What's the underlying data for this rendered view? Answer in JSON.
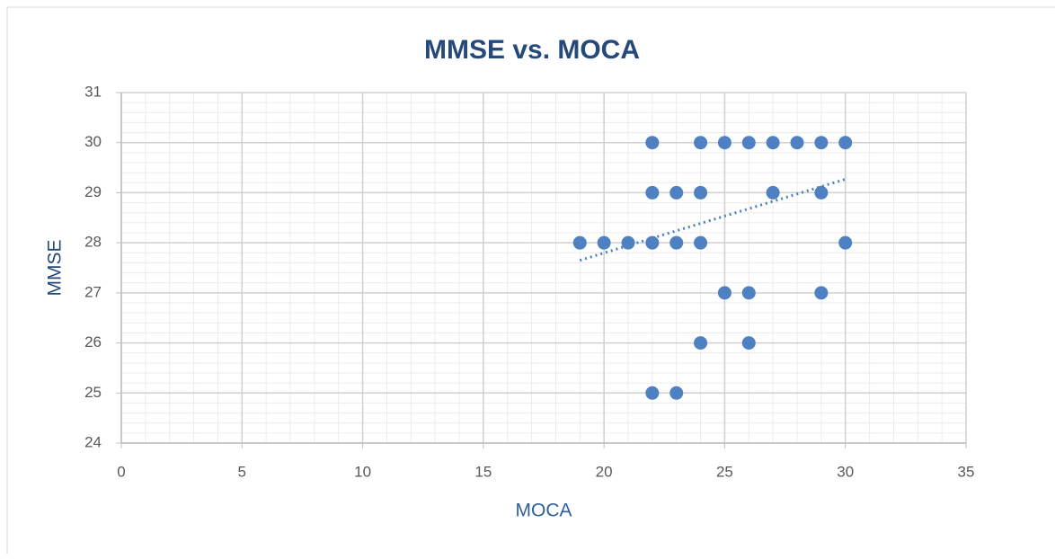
{
  "chart_data": {
    "type": "scatter",
    "title": "MMSE vs. MOCA",
    "x_label": "MOCA",
    "y_label": "MMSE",
    "series": [
      {
        "name": "MMSE",
        "color": "#4f81c2",
        "x": [
          22,
          24,
          25,
          26,
          27,
          28,
          29,
          30,
          22,
          23,
          24,
          27,
          29,
          19,
          20,
          21,
          22,
          23,
          24,
          30,
          25,
          26,
          29,
          24,
          26,
          22,
          23
        ],
        "values": [
          30,
          30,
          30,
          30,
          30,
          30,
          30,
          30,
          29,
          29,
          29,
          29,
          29,
          28,
          28,
          28,
          28,
          28,
          28,
          28,
          27,
          27,
          27,
          26,
          26,
          25,
          25
        ]
      }
    ],
    "trendline": {
      "color": "#4f81c2",
      "x": [
        19,
        30
      ],
      "values": [
        27.65,
        29.27
      ]
    },
    "xlim": [
      0,
      35
    ],
    "xticks": [
      0,
      5,
      10,
      15,
      20,
      25,
      30,
      35
    ],
    "ylim": [
      24,
      31
    ],
    "yticks": [
      24,
      25,
      26,
      27,
      28,
      29,
      30,
      31
    ],
    "grid": true,
    "minor_grid": {
      "x": 1,
      "y": 0.2
    }
  }
}
